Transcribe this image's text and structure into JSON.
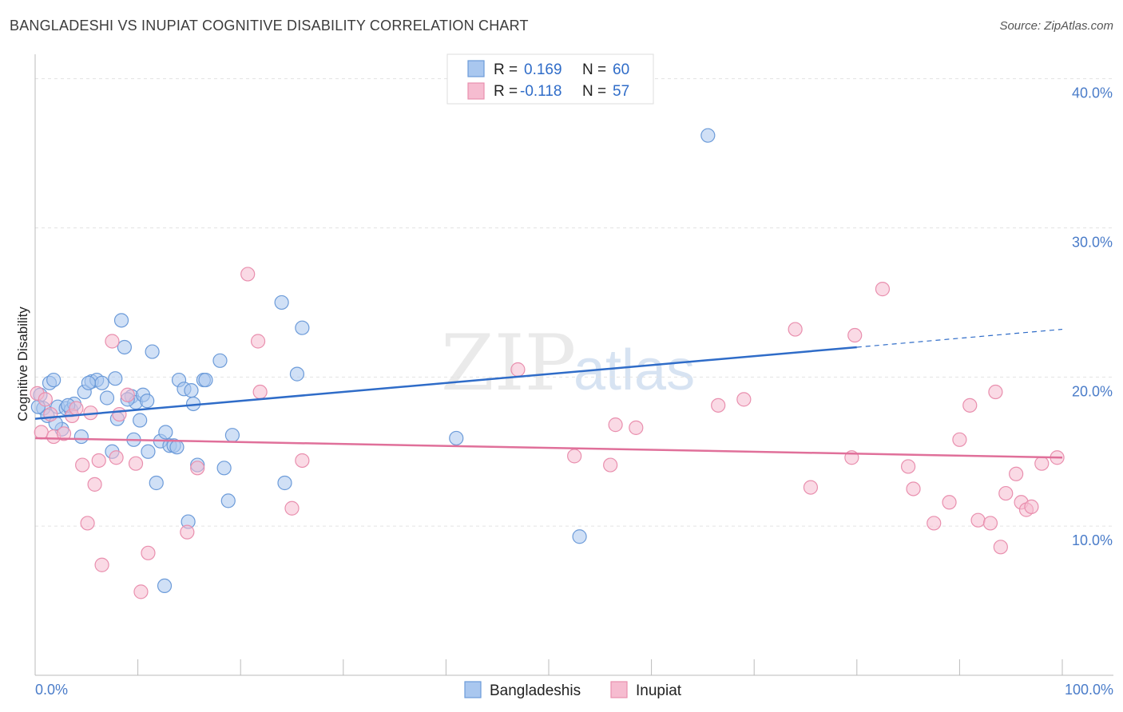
{
  "header": {
    "title": "BANGLADESHI VS INUPIAT COGNITIVE DISABILITY CORRELATION CHART",
    "source": "Source: ZipAtlas.com"
  },
  "watermark": {
    "zip": "ZIP",
    "atlas": "atlas"
  },
  "legend_top": [
    {
      "r_label": "R =",
      "r_value": "0.169",
      "n_label": "N =",
      "n_value": "60",
      "color": "#a9c7ef",
      "stroke": "#6c9bd9"
    },
    {
      "r_label": "R =",
      "r_value": "-0.118",
      "n_label": "N =",
      "n_value": "57",
      "color": "#f6bcd0",
      "stroke": "#e98fae"
    }
  ],
  "legend_bottom": [
    {
      "label": "Bangladeshis",
      "color": "#a9c7ef",
      "stroke": "#6c9bd9"
    },
    {
      "label": "Inupiat",
      "color": "#f6bcd0",
      "stroke": "#e98fae"
    }
  ],
  "chart_data": {
    "type": "scatter",
    "title": "BANGLADESHI VS INUPIAT COGNITIVE DISABILITY CORRELATION CHART",
    "xlabel": "",
    "ylabel": "Cognitive Disability",
    "xlim": [
      0,
      100
    ],
    "ylim": [
      0,
      41
    ],
    "x_tick_labels": [
      "0.0%",
      "100.0%"
    ],
    "y_ticks": [
      10,
      20,
      30,
      40
    ],
    "y_tick_labels": [
      "10.0%",
      "20.0%",
      "30.0%",
      "40.0%"
    ],
    "grid": true,
    "series": [
      {
        "name": "Bangladeshis",
        "color": "#6c9bd9",
        "fill": "#a9c7ef",
        "line_color": "#2f6cc8",
        "trend": {
          "x0": 0,
          "y0": 17.2,
          "x1": 80,
          "y1": 22.0,
          "dash_to_x": 100,
          "dash_to_y": 23.2
        },
        "points": [
          [
            0.5,
            18.8
          ],
          [
            0.8,
            17.9
          ],
          [
            1.2,
            17.4
          ],
          [
            1.4,
            19.6
          ],
          [
            1.8,
            19.8
          ],
          [
            2.2,
            18.0
          ],
          [
            2.6,
            16.5
          ],
          [
            3.0,
            17.9
          ],
          [
            3.5,
            17.8
          ],
          [
            3.8,
            18.2
          ],
          [
            4.5,
            16.0
          ],
          [
            4.8,
            19.0
          ],
          [
            5.5,
            19.7
          ],
          [
            6.0,
            19.8
          ],
          [
            6.5,
            19.6
          ],
          [
            7.0,
            18.6
          ],
          [
            7.5,
            15.0
          ],
          [
            7.8,
            19.9
          ],
          [
            8.0,
            17.2
          ],
          [
            8.4,
            23.8
          ],
          [
            8.7,
            22.0
          ],
          [
            9.4,
            18.7
          ],
          [
            9.6,
            15.8
          ],
          [
            9.8,
            18.3
          ],
          [
            10.2,
            17.1
          ],
          [
            10.5,
            18.8
          ],
          [
            10.9,
            18.4
          ],
          [
            11.0,
            15.0
          ],
          [
            11.4,
            21.7
          ],
          [
            11.8,
            12.9
          ],
          [
            12.2,
            15.7
          ],
          [
            12.6,
            6.0
          ],
          [
            12.7,
            16.3
          ],
          [
            13.1,
            15.4
          ],
          [
            13.5,
            15.4
          ],
          [
            14.0,
            19.8
          ],
          [
            14.5,
            19.2
          ],
          [
            14.9,
            10.3
          ],
          [
            15.2,
            19.1
          ],
          [
            15.4,
            18.2
          ],
          [
            15.8,
            14.1
          ],
          [
            16.4,
            19.8
          ],
          [
            16.6,
            19.8
          ],
          [
            18.0,
            21.1
          ],
          [
            18.4,
            13.9
          ],
          [
            18.8,
            11.7
          ],
          [
            19.2,
            16.1
          ],
          [
            24.0,
            25.0
          ],
          [
            24.3,
            12.9
          ],
          [
            25.5,
            20.2
          ],
          [
            26.0,
            23.3
          ],
          [
            41.0,
            15.9
          ],
          [
            53.0,
            9.3
          ],
          [
            65.5,
            36.2
          ],
          [
            2.0,
            16.9
          ],
          [
            3.2,
            18.1
          ],
          [
            0.3,
            18.0
          ],
          [
            5.2,
            19.6
          ],
          [
            9.0,
            18.5
          ],
          [
            13.8,
            15.3
          ]
        ]
      },
      {
        "name": "Inupiat",
        "color": "#e98fae",
        "fill": "#f6bcd0",
        "line_color": "#e0709a",
        "trend": {
          "x0": 0,
          "y0": 15.9,
          "x1": 100,
          "y1": 14.6
        },
        "points": [
          [
            0.2,
            18.9
          ],
          [
            0.6,
            16.3
          ],
          [
            1.0,
            18.5
          ],
          [
            1.5,
            17.5
          ],
          [
            1.8,
            16.0
          ],
          [
            2.8,
            16.2
          ],
          [
            3.6,
            17.4
          ],
          [
            4.0,
            17.9
          ],
          [
            4.6,
            14.1
          ],
          [
            5.1,
            10.2
          ],
          [
            5.8,
            12.8
          ],
          [
            6.2,
            14.4
          ],
          [
            6.5,
            7.4
          ],
          [
            7.5,
            22.4
          ],
          [
            7.9,
            14.6
          ],
          [
            8.2,
            17.5
          ],
          [
            9.0,
            18.8
          ],
          [
            9.8,
            14.2
          ],
          [
            10.3,
            5.6
          ],
          [
            11.0,
            8.2
          ],
          [
            14.8,
            9.6
          ],
          [
            15.8,
            13.9
          ],
          [
            20.7,
            26.9
          ],
          [
            21.7,
            22.4
          ],
          [
            21.9,
            19.0
          ],
          [
            25.0,
            11.2
          ],
          [
            26.0,
            14.4
          ],
          [
            47.0,
            20.5
          ],
          [
            52.5,
            14.7
          ],
          [
            56.5,
            16.8
          ],
          [
            56.0,
            14.1
          ],
          [
            58.5,
            16.6
          ],
          [
            66.5,
            18.1
          ],
          [
            69.0,
            18.5
          ],
          [
            74.0,
            23.2
          ],
          [
            75.5,
            12.6
          ],
          [
            79.5,
            14.6
          ],
          [
            79.8,
            22.8
          ],
          [
            82.5,
            25.9
          ],
          [
            85.0,
            14.0
          ],
          [
            85.5,
            12.5
          ],
          [
            87.5,
            10.2
          ],
          [
            89.0,
            11.6
          ],
          [
            90.0,
            15.8
          ],
          [
            91.0,
            18.1
          ],
          [
            91.8,
            10.4
          ],
          [
            93.0,
            10.2
          ],
          [
            93.5,
            19.0
          ],
          [
            94.0,
            8.6
          ],
          [
            94.5,
            12.2
          ],
          [
            95.5,
            13.5
          ],
          [
            96.0,
            11.6
          ],
          [
            96.5,
            11.1
          ],
          [
            97.0,
            11.3
          ],
          [
            98.0,
            14.2
          ],
          [
            99.5,
            14.6
          ],
          [
            5.4,
            17.6
          ]
        ]
      }
    ]
  }
}
